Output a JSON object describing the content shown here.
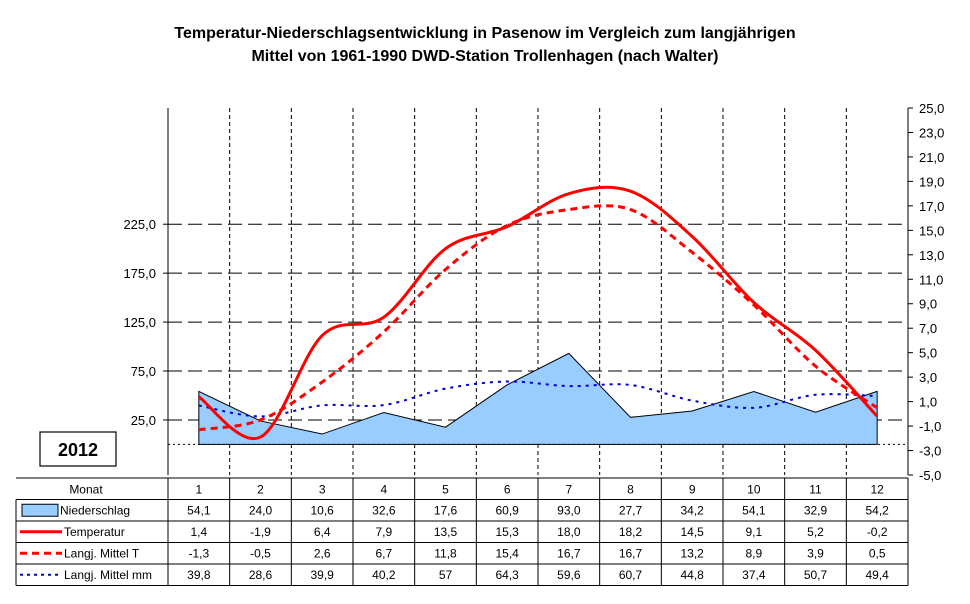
{
  "chart_data": {
    "type": "line",
    "title_line1": "Temperatur-Niederschlagsentwicklung in Pasenow im Vergleich zum langjährigen",
    "title_line2": "Mittel von 1961-1990 DWD-Station Trollenhagen (nach Walter)",
    "year": "2012",
    "row_header": "Monat",
    "categories": [
      "1",
      "2",
      "3",
      "4",
      "5",
      "6",
      "7",
      "8",
      "9",
      "10",
      "11",
      "12"
    ],
    "left_axis": {
      "ticks": [
        "25,0",
        "75,0",
        "125,0",
        "175,0",
        "225,0"
      ],
      "tick_values": [
        25,
        75,
        125,
        175,
        225
      ]
    },
    "right_axis": {
      "ticks": [
        "25,0",
        "23,0",
        "21,0",
        "19,0",
        "17,0",
        "15,0",
        "13,0",
        "11,0",
        "9,0",
        "7,0",
        "5,0",
        "3,0",
        "1,0",
        "-1,0",
        "-3,0",
        "-5,0"
      ],
      "range": [
        -5,
        25
      ]
    },
    "grid": true,
    "series": [
      {
        "name": "Niederschlag",
        "type": "area",
        "axis": "left",
        "color": "#99CCFF",
        "values": [
          54.1,
          24.0,
          10.6,
          32.6,
          17.6,
          60.9,
          93.0,
          27.7,
          34.2,
          54.1,
          32.9,
          54.2
        ],
        "labels": [
          "54,1",
          "24,0",
          "10,6",
          "32,6",
          "17,6",
          "60,9",
          "93,0",
          "27,7",
          "34,2",
          "54,1",
          "32,9",
          "54,2"
        ]
      },
      {
        "name": "Temperatur",
        "type": "line",
        "axis": "right",
        "color": "#FF0000",
        "values": [
          1.4,
          -1.9,
          6.4,
          7.9,
          13.5,
          15.3,
          18.0,
          18.2,
          14.5,
          9.1,
          5.2,
          -0.2
        ],
        "labels": [
          "1,4",
          "-1,9",
          "6,4",
          "7,9",
          "13,5",
          "15,3",
          "18,0",
          "18,2",
          "14,5",
          "9,1",
          "5,2",
          "-0,2"
        ]
      },
      {
        "name": "Langj. Mittel T",
        "type": "line",
        "axis": "right",
        "color": "#FF0000",
        "values": [
          -1.3,
          -0.5,
          2.6,
          6.7,
          11.8,
          15.4,
          16.7,
          16.7,
          13.2,
          8.9,
          3.9,
          0.5
        ],
        "labels": [
          "-1,3",
          "-0,5",
          "2,6",
          "6,7",
          "11,8",
          "15,4",
          "16,7",
          "16,7",
          "13,2",
          "8,9",
          "3,9",
          "0,5"
        ]
      },
      {
        "name": "Langj. Mittel mm",
        "type": "line",
        "axis": "left",
        "color": "#0000CC",
        "values": [
          39.8,
          28.6,
          39.9,
          40.2,
          57,
          64.3,
          59.6,
          60.7,
          44.8,
          37.4,
          50.7,
          49.4
        ],
        "labels": [
          "39,8",
          "28,6",
          "39,9",
          "40,2",
          "57",
          "64,3",
          "59,6",
          "60,7",
          "44,8",
          "37,4",
          "50,7",
          "49,4"
        ]
      }
    ]
  }
}
